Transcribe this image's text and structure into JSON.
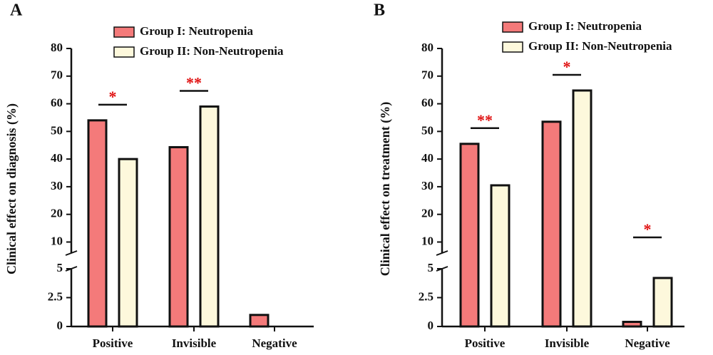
{
  "chart_data": [
    {
      "type": "bar",
      "panel_label": "A",
      "y_label": "Clinical effect on diagnosis (%)",
      "categories": [
        "Positive",
        "Invisible",
        "Negative"
      ],
      "series": [
        {
          "name": "Group I: Neutropenia",
          "color": "#f47a7a",
          "values": [
            54,
            44.3,
            1
          ]
        },
        {
          "name": "Group II: Non-Neutropenia",
          "color": "#fdf8dc",
          "values": [
            40,
            59,
            0
          ]
        }
      ],
      "significance": [
        "*",
        "**",
        null
      ],
      "ylim_lower": [
        0,
        5
      ],
      "yticks_lower": [
        0,
        2.5,
        5
      ],
      "ylim": [
        6,
        80
      ],
      "yticks": [
        10,
        20,
        30,
        40,
        50,
        60,
        70,
        80
      ]
    },
    {
      "type": "bar",
      "panel_label": "B",
      "y_label": "Clinical effect on treatment (%)",
      "categories": [
        "Positive",
        "Invisible",
        "Negative"
      ],
      "series": [
        {
          "name": "Group I: Neutropenia",
          "color": "#f47a7a",
          "values": [
            45.5,
            53.5,
            0.4
          ]
        },
        {
          "name": "Group II: Non-Neutropenia",
          "color": "#fdf8dc",
          "values": [
            30.5,
            64.8,
            4.2
          ]
        }
      ],
      "significance": [
        "**",
        "*",
        "*"
      ],
      "ylim_lower": [
        0,
        5
      ],
      "yticks_lower": [
        0,
        2.5,
        5
      ],
      "ylim": [
        6,
        80
      ],
      "yticks": [
        10,
        20,
        30,
        40,
        50,
        60,
        70,
        80
      ]
    }
  ]
}
